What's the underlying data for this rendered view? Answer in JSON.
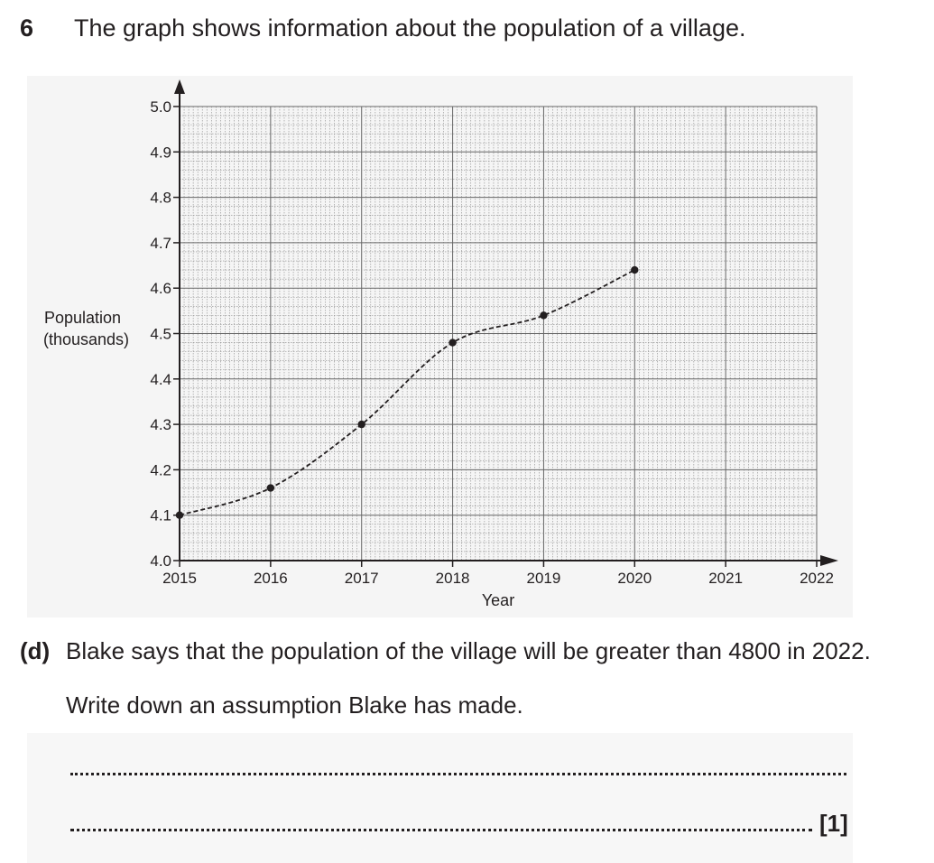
{
  "question": {
    "number": "6",
    "text": "The graph shows information about the population of a village."
  },
  "chart_data": {
    "type": "line",
    "title": "",
    "xlabel": "Year",
    "ylabel": "Population\n(thousands)",
    "x_ticks": [
      "2015",
      "2016",
      "2017",
      "2018",
      "2019",
      "2020",
      "2021",
      "2022"
    ],
    "y_ticks": [
      "4.0",
      "4.1",
      "4.2",
      "4.3",
      "4.4",
      "4.5",
      "4.6",
      "4.7",
      "4.8",
      "4.9",
      "5.0"
    ],
    "xlim": [
      2015,
      2022
    ],
    "ylim": [
      4.0,
      5.0
    ],
    "grid": true,
    "line_style": "dashed",
    "series": [
      {
        "x": [
          2015,
          2016,
          2017,
          2018,
          2019,
          2020
        ],
        "y": [
          4.1,
          4.16,
          4.3,
          4.48,
          4.54,
          4.64
        ]
      }
    ]
  },
  "part_d": {
    "label": "(d)",
    "text": "Blake says that the population of the village will be greater than 4800 in 2022.",
    "instruction": "Write down an assumption Blake has made.",
    "marks": "[1]"
  }
}
